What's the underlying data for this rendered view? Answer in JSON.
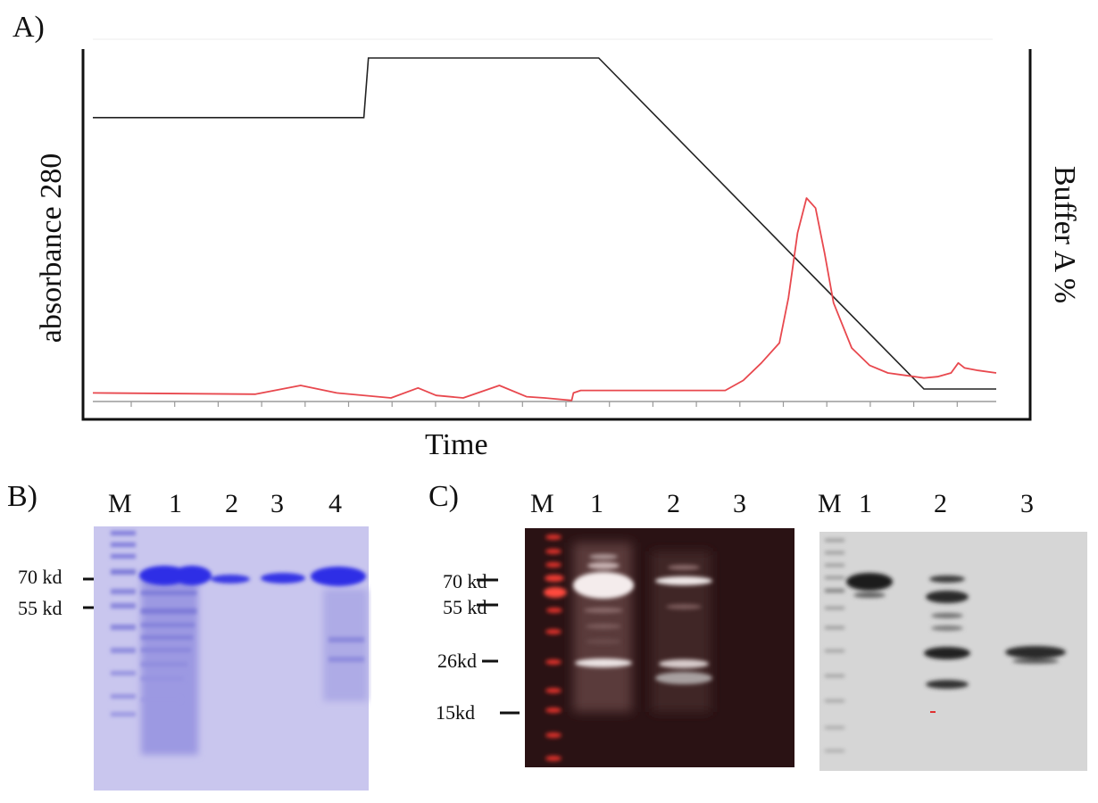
{
  "panel_a": {
    "letter": "A)",
    "xlabel": "Time",
    "ylabel_left": "absorbance 280",
    "ylabel_right": "Buffer A %",
    "chart_data": {
      "type": "line",
      "title": "",
      "xlabel": "Time",
      "ylabel": "absorbance 280",
      "y2label": "Buffer A %",
      "x_ticks_count": 20,
      "series": [
        {
          "name": "",
          "color": "#222222",
          "x": [
            0,
            30,
            30.5,
            56,
            92,
            100
          ],
          "y": [
            82,
            82,
            100,
            100,
            0,
            0
          ]
        },
        {
          "name": "",
          "color": "#e8484e",
          "x": [
            0,
            18,
            23,
            27,
            33,
            36,
            38,
            41,
            45,
            48,
            50,
            53,
            53.2,
            54,
            58,
            70,
            72,
            74,
            76,
            77,
            78,
            79,
            80,
            81,
            82,
            84,
            86,
            88,
            90,
            92,
            93.5,
            95,
            95.8,
            96.5,
            98,
            100
          ],
          "y": [
            2,
            1.5,
            5,
            2,
            0,
            4,
            1,
            0,
            5,
            0.5,
            0,
            -1,
            2,
            3,
            3,
            3,
            7,
            14,
            22,
            40,
            66,
            80,
            76,
            58,
            38,
            20,
            13,
            10,
            9,
            8,
            8.5,
            10,
            14,
            12,
            11,
            10
          ]
        }
      ]
    }
  },
  "panel_b": {
    "letter": "B)",
    "lanes": [
      "M",
      "1",
      "2",
      "3",
      "4"
    ],
    "markers": [
      "70 kd",
      "55 kd"
    ]
  },
  "panel_c": {
    "letter": "C)",
    "left_lanes": [
      "M",
      "1",
      "2",
      "3"
    ],
    "right_lanes": [
      "M",
      "1",
      "2",
      "3"
    ],
    "markers": [
      "70 kd",
      "55 kd",
      "26kd",
      "15kd"
    ]
  }
}
